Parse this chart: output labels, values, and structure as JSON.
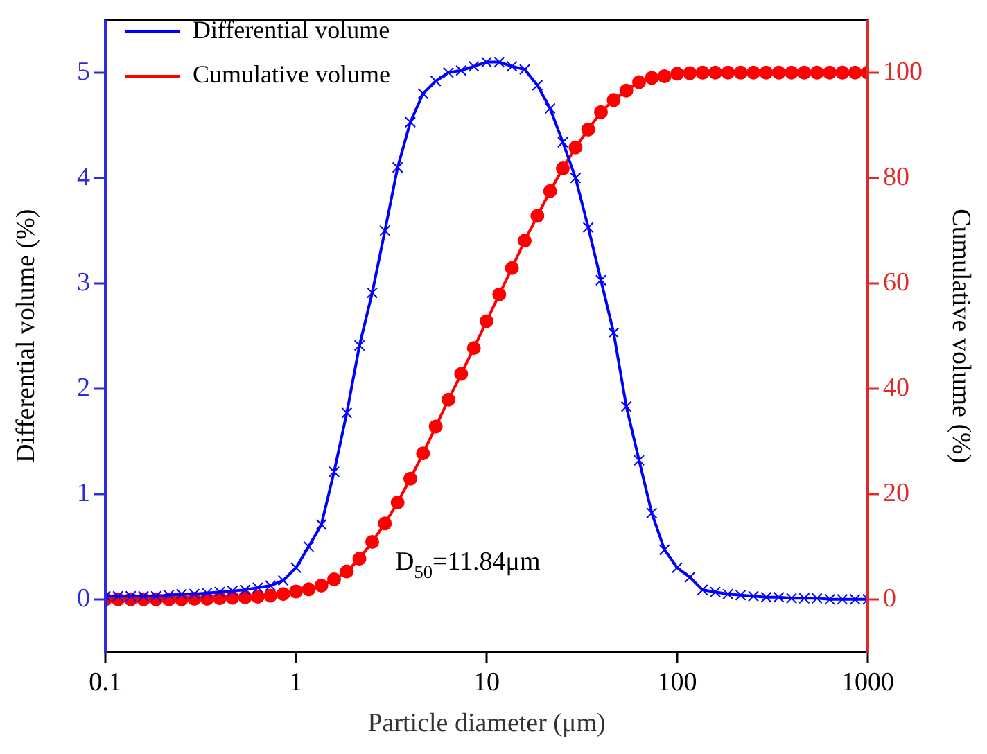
{
  "chart_data": {
    "type": "line",
    "xlabel": "Particle diameter (μm)",
    "ylabel": "Differential volume (%)",
    "y2label": "Cumulative volume (%)",
    "x": [
      0.1,
      0.1166,
      0.1359,
      0.1585,
      0.1848,
      0.2154,
      0.2512,
      0.2929,
      0.3415,
      0.3981,
      0.4642,
      0.5412,
      0.631,
      0.7356,
      0.8577,
      1,
      1.166,
      1.359,
      1.585,
      1.848,
      2.154,
      2.512,
      2.929,
      3.415,
      3.981,
      4.642,
      5.412,
      6.31,
      7.356,
      8.577,
      10,
      11.66,
      13.59,
      15.85,
      18.48,
      21.54,
      25.12,
      29.29,
      34.15,
      39.81,
      46.42,
      54.12,
      63.1,
      73.56,
      85.77,
      100,
      116.6,
      135.9,
      158.5,
      184.8,
      215.4,
      251.2,
      292.9,
      341.5,
      398.1,
      464.2,
      541.2,
      631,
      735.6,
      857.7,
      1000
    ],
    "series": [
      {
        "name": "Differential volume",
        "color": "#0000ff",
        "marker": "cross",
        "values": [
          0.03,
          0.03,
          0.03,
          0.03,
          0.03,
          0.04,
          0.05,
          0.05,
          0.06,
          0.07,
          0.08,
          0.09,
          0.11,
          0.13,
          0.18,
          0.3,
          0.5,
          0.71,
          1.21,
          1.77,
          2.41,
          2.91,
          3.5,
          4.1,
          4.53,
          4.8,
          4.92,
          5.0,
          5.02,
          5.06,
          5.1,
          5.1,
          5.06,
          5.03,
          4.88,
          4.66,
          4.34,
          4.0,
          3.53,
          3.03,
          2.53,
          1.83,
          1.32,
          0.82,
          0.47,
          0.3,
          0.21,
          0.09,
          0.07,
          0.05,
          0.04,
          0.03,
          0.02,
          0.02,
          0.01,
          0.01,
          0.01,
          0,
          0,
          0,
          0
        ]
      },
      {
        "name": "Cumulative volume",
        "color": "#ff0000",
        "marker": "circle",
        "axis": "y2",
        "values": [
          0,
          0,
          0,
          0,
          0,
          0,
          0,
          0.1,
          0.1,
          0.2,
          0.3,
          0.4,
          0.5,
          0.7,
          1.0,
          1.5,
          1.9,
          2.6,
          3.8,
          5.3,
          7.7,
          10.9,
          14.4,
          18.4,
          22.9,
          27.7,
          32.8,
          37.9,
          42.8,
          47.7,
          52.8,
          57.9,
          62.9,
          68.1,
          72.8,
          77.5,
          81.8,
          85.8,
          89.2,
          92.5,
          94.8,
          96.6,
          98.2,
          99.0,
          99.3,
          99.8,
          99.9,
          100,
          100,
          100,
          100,
          100,
          100,
          100,
          100,
          100,
          100,
          100,
          100,
          100,
          100
        ]
      }
    ],
    "log": "x",
    "xlim": [
      0.1,
      1000
    ],
    "xticks": [
      0.1,
      1,
      10,
      100,
      1000
    ],
    "ylim": [
      -0.5,
      5.5
    ],
    "yticks": [
      0,
      1,
      2,
      3,
      4,
      5
    ],
    "y2lim": [
      -10,
      110
    ],
    "y2ticks": [
      0,
      20,
      40,
      60,
      80,
      100
    ],
    "grid": false,
    "legend": "top left",
    "annotations": [
      "D$_{50}$=11.84μm"
    ]
  }
}
